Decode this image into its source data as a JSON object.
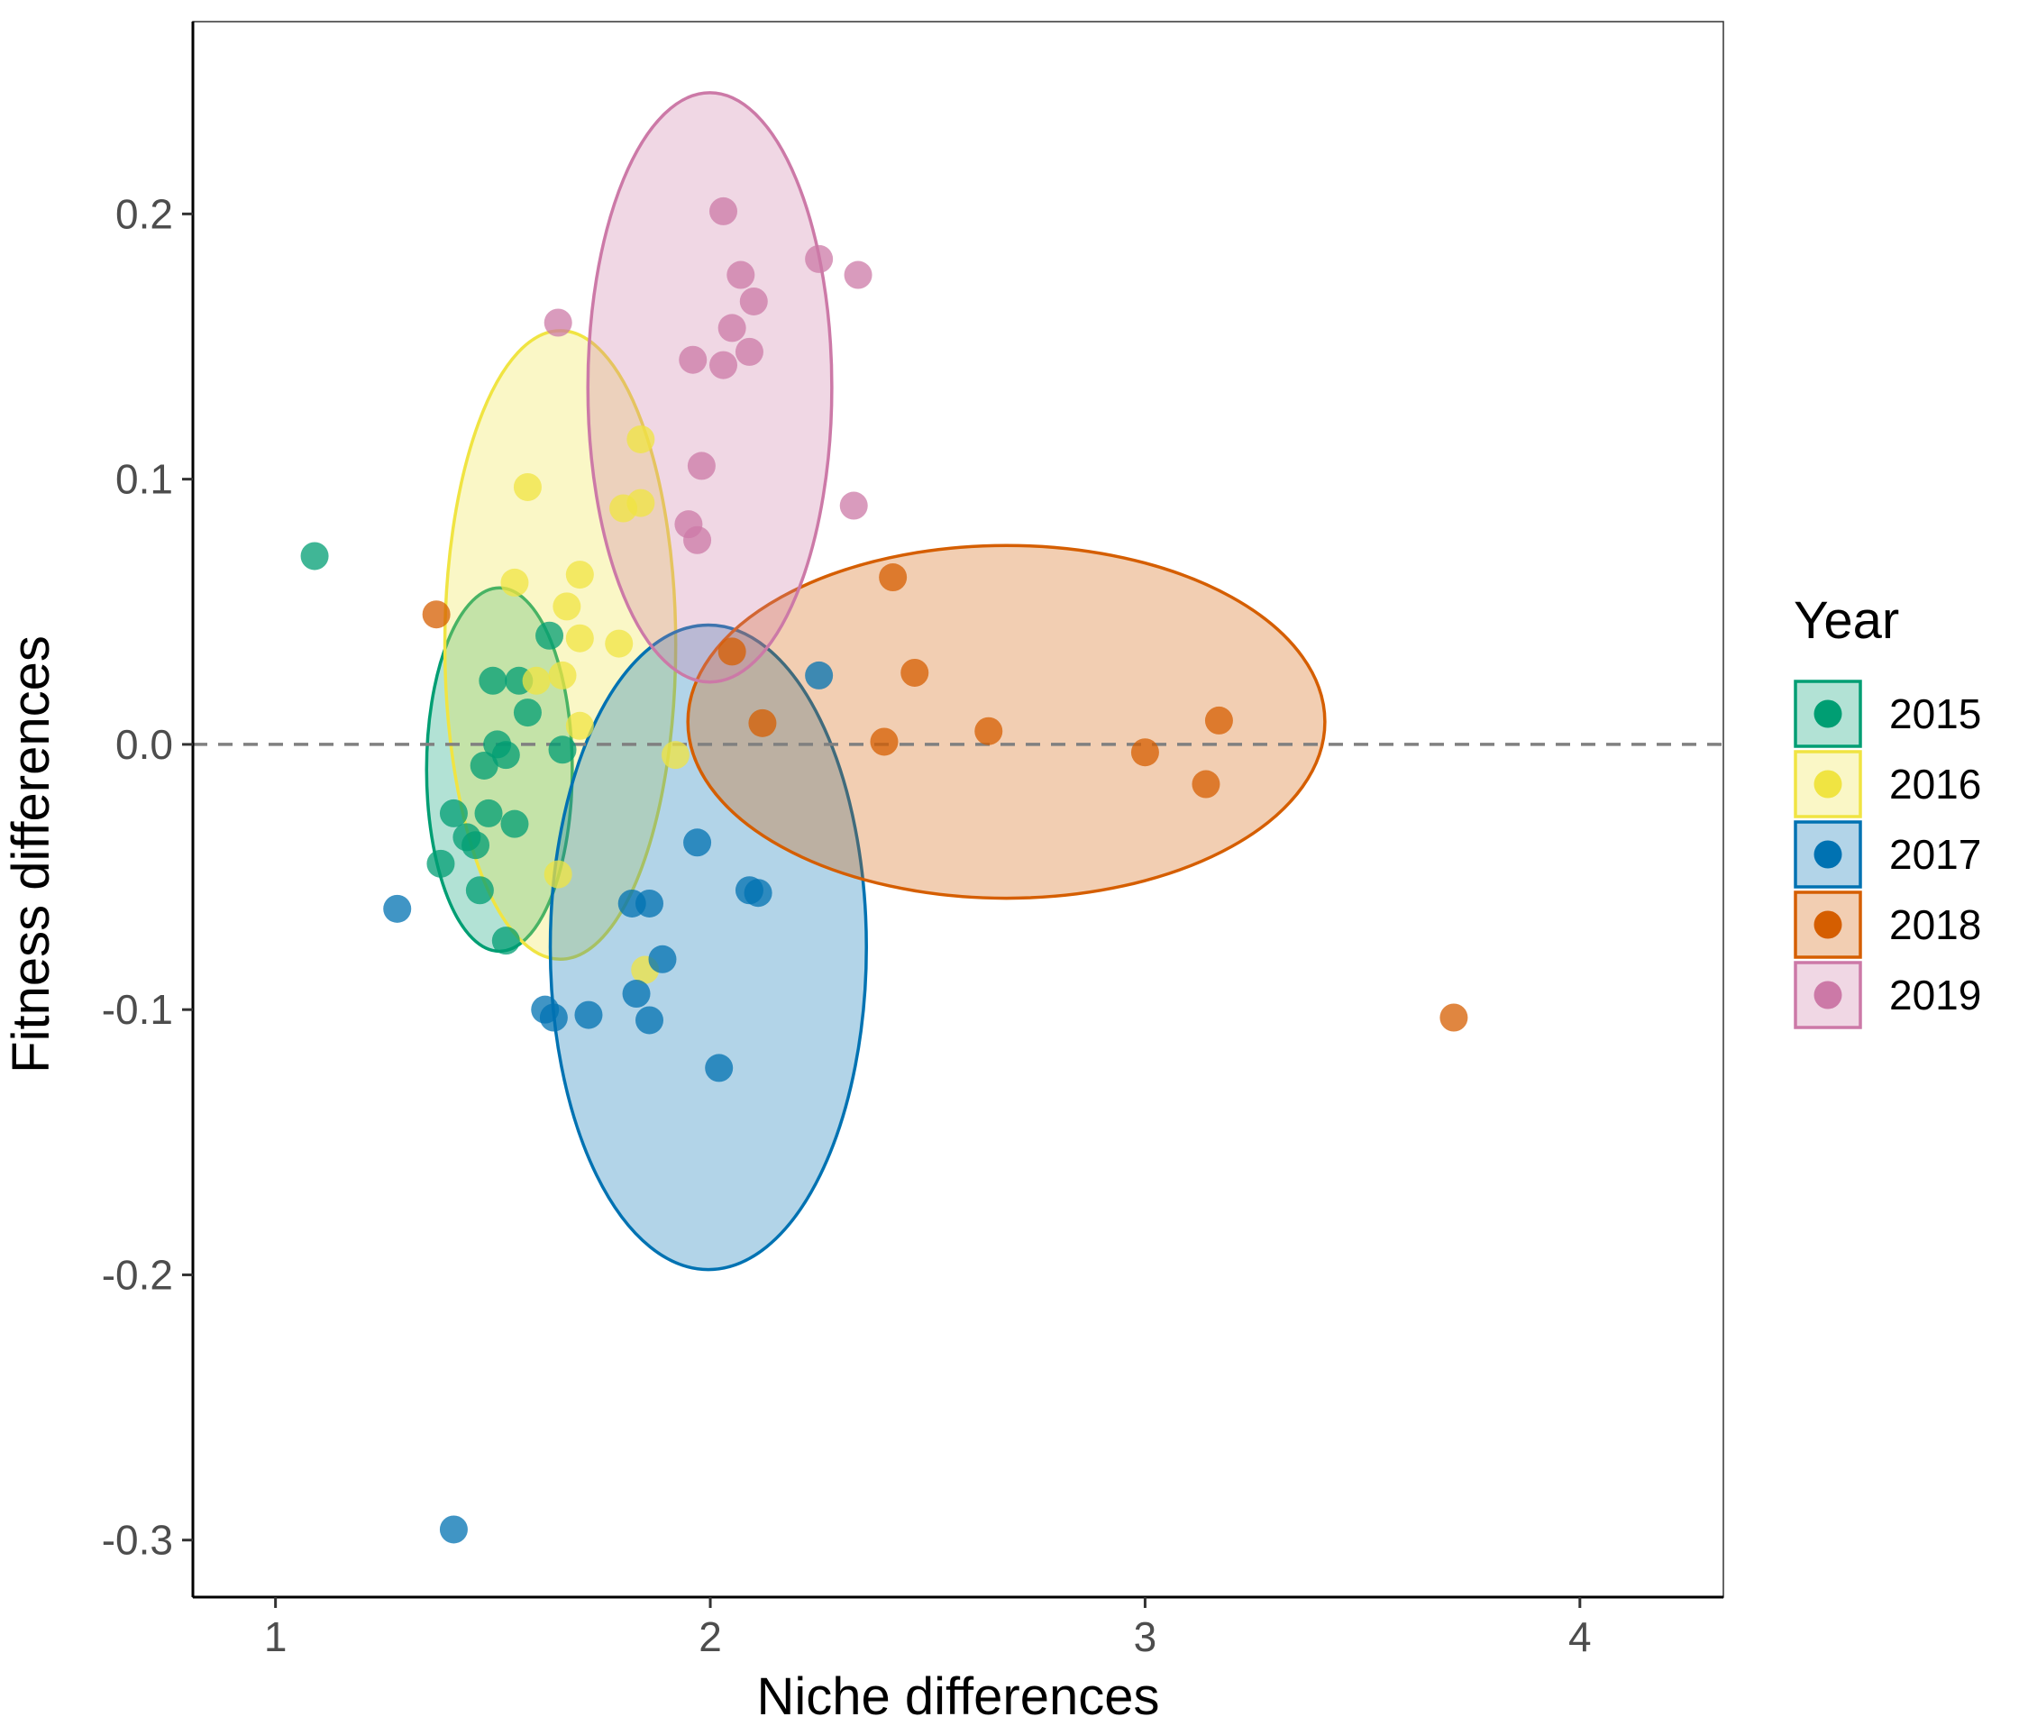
{
  "chart_data": {
    "type": "scatter",
    "xlabel": "Niche differences",
    "ylabel": "Fitness differences",
    "xlim": [
      0.81,
      4.33
    ],
    "ylim": [
      -0.3215,
      0.2725
    ],
    "x_ticks": [
      "1",
      "2",
      "3",
      "4"
    ],
    "x_tick_values": [
      1,
      2,
      3,
      4
    ],
    "y_ticks": [
      "0.2",
      "0.1",
      "0.0",
      "-0.1",
      "-0.2",
      "-0.3"
    ],
    "y_tick_values": [
      0.2,
      0.1,
      0.0,
      -0.1,
      -0.2,
      -0.3
    ],
    "reference_line": {
      "y": 0,
      "style": "dashed",
      "color": "#808080"
    },
    "grid": false,
    "legend": {
      "title": "Year",
      "position": "right"
    },
    "series": [
      {
        "name": "2015",
        "color": "#009E73",
        "points": [
          [
            1.09,
            0.071
          ],
          [
            1.51,
            0.0
          ],
          [
            1.48,
            -0.008
          ],
          [
            1.53,
            -0.004
          ],
          [
            1.41,
            -0.026
          ],
          [
            1.49,
            -0.026
          ],
          [
            1.44,
            -0.035
          ],
          [
            1.55,
            -0.03
          ],
          [
            1.46,
            -0.038
          ],
          [
            1.38,
            -0.045
          ],
          [
            1.47,
            -0.055
          ],
          [
            1.53,
            -0.074
          ],
          [
            1.5,
            0.024
          ],
          [
            1.56,
            0.024
          ],
          [
            1.58,
            0.012
          ],
          [
            1.63,
            0.041
          ],
          [
            1.66,
            -0.002
          ]
        ],
        "ellipse": {
          "cx": 1.515,
          "cy": -0.0095,
          "rx": 0.1675,
          "ry": 0.0685
        }
      },
      {
        "name": "2016",
        "color": "#F0E442",
        "points": [
          [
            1.58,
            0.097
          ],
          [
            1.84,
            0.115
          ],
          [
            1.84,
            0.091
          ],
          [
            1.8,
            0.089
          ],
          [
            1.55,
            0.061
          ],
          [
            1.7,
            0.064
          ],
          [
            1.67,
            0.052
          ],
          [
            1.7,
            0.04
          ],
          [
            1.79,
            0.038
          ],
          [
            1.66,
            0.026
          ],
          [
            1.6,
            0.024
          ],
          [
            1.7,
            0.007
          ],
          [
            1.92,
            -0.004
          ],
          [
            1.65,
            -0.049
          ],
          [
            1.85,
            -0.085
          ]
        ],
        "ellipse": {
          "cx": 1.655,
          "cy": 0.0375,
          "rx": 0.2655,
          "ry": 0.1185
        }
      },
      {
        "name": "2017",
        "color": "#0072B2",
        "points": [
          [
            2.25,
            0.026
          ],
          [
            1.97,
            -0.037
          ],
          [
            2.09,
            -0.055
          ],
          [
            2.11,
            -0.056
          ],
          [
            1.82,
            -0.06
          ],
          [
            1.86,
            -0.06
          ],
          [
            1.89,
            -0.081
          ],
          [
            1.83,
            -0.094
          ],
          [
            1.62,
            -0.1
          ],
          [
            1.64,
            -0.103
          ],
          [
            1.72,
            -0.102
          ],
          [
            1.86,
            -0.104
          ],
          [
            2.02,
            -0.122
          ],
          [
            1.28,
            -0.062
          ],
          [
            1.41,
            -0.296
          ]
        ],
        "ellipse": {
          "cx": 1.9955,
          "cy": -0.0765,
          "rx": 0.3635,
          "ry": 0.1215
        }
      },
      {
        "name": "2018",
        "color": "#D55E00",
        "points": [
          [
            1.37,
            0.049
          ],
          [
            2.42,
            0.063
          ],
          [
            2.47,
            0.027
          ],
          [
            2.05,
            0.035
          ],
          [
            2.12,
            0.008
          ],
          [
            2.4,
            0.001
          ],
          [
            2.64,
            0.005
          ],
          [
            3.0,
            -0.003
          ],
          [
            3.17,
            0.009
          ],
          [
            3.14,
            -0.015
          ],
          [
            3.71,
            -0.103
          ]
        ],
        "ellipse": {
          "cx": 2.681,
          "cy": 0.0085,
          "rx": 0.7325,
          "ry": 0.0665
        }
      },
      {
        "name": "2019",
        "color": "#CC79A7",
        "points": [
          [
            2.03,
            0.201
          ],
          [
            2.25,
            0.183
          ],
          [
            2.34,
            0.177
          ],
          [
            2.07,
            0.177
          ],
          [
            2.1,
            0.167
          ],
          [
            1.65,
            0.159
          ],
          [
            2.05,
            0.157
          ],
          [
            1.96,
            0.145
          ],
          [
            2.09,
            0.148
          ],
          [
            2.03,
            0.143
          ],
          [
            1.98,
            0.105
          ],
          [
            2.33,
            0.09
          ],
          [
            1.95,
            0.083
          ],
          [
            1.97,
            0.077
          ]
        ],
        "ellipse": {
          "cx": 1.999,
          "cy": 0.1346,
          "rx": 0.2805,
          "ry": 0.1111
        }
      }
    ]
  }
}
